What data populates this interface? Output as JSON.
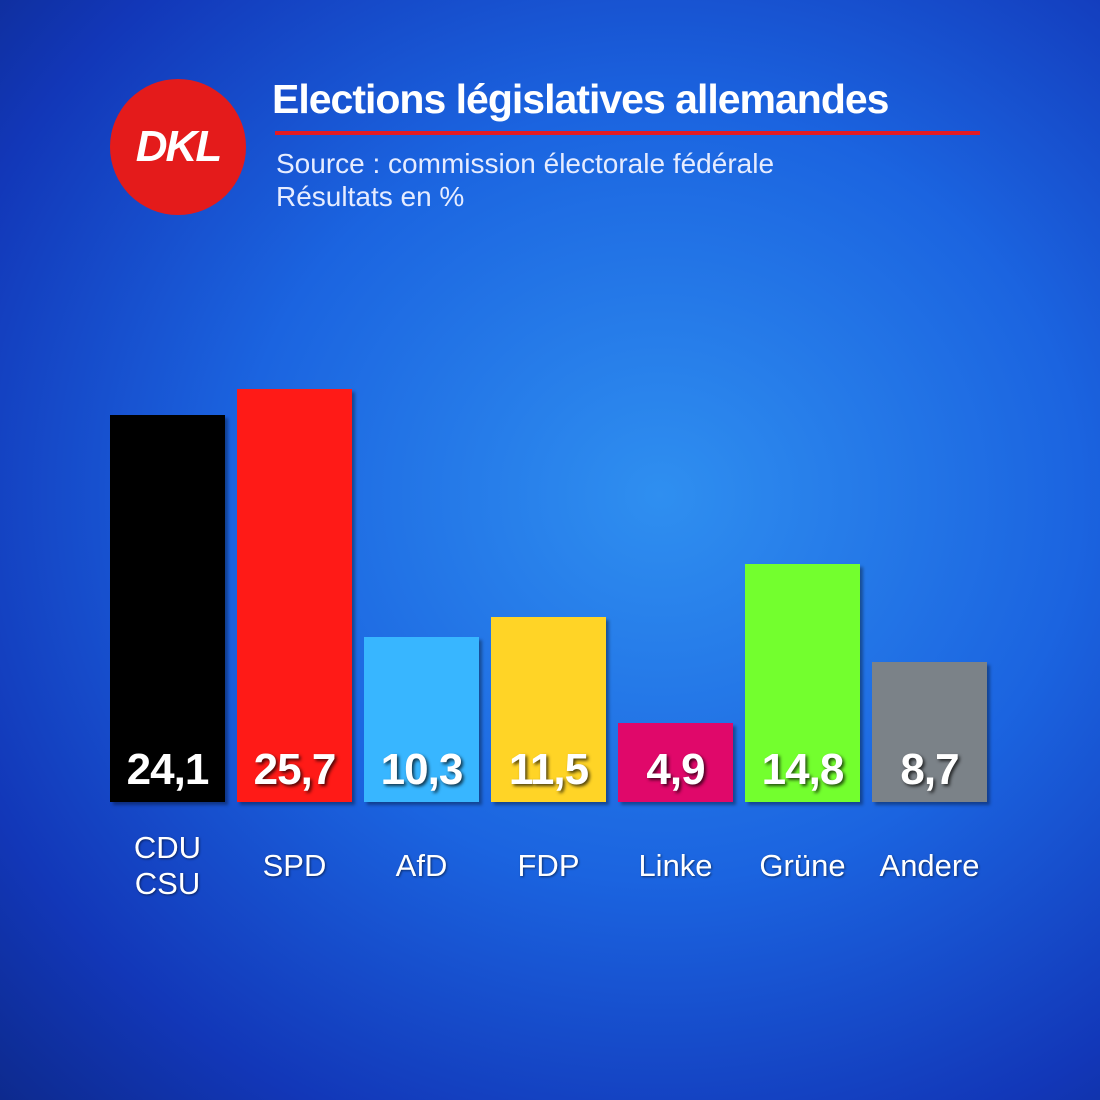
{
  "logo": "DKL",
  "chart_data": {
    "type": "bar",
    "title": "Elections législatives allemandes",
    "subtitle": "Source : commission électorale fédérale",
    "note": "Résultats en %",
    "categories": [
      "CDU\nCSU",
      "SPD",
      "AfD",
      "FDP",
      "Linke",
      "Grüne",
      "Andere"
    ],
    "values": [
      24.1,
      25.7,
      10.3,
      11.5,
      4.9,
      14.8,
      8.7
    ],
    "value_labels": [
      "24,1",
      "25,7",
      "10,3",
      "11,5",
      "4,9",
      "14,8",
      "8,7"
    ],
    "colors": [
      "#000000",
      "#ff1a17",
      "#38b6ff",
      "#ffd426",
      "#e0086a",
      "#73ff2e",
      "#7b8288"
    ],
    "ylim": [
      0,
      30
    ]
  }
}
